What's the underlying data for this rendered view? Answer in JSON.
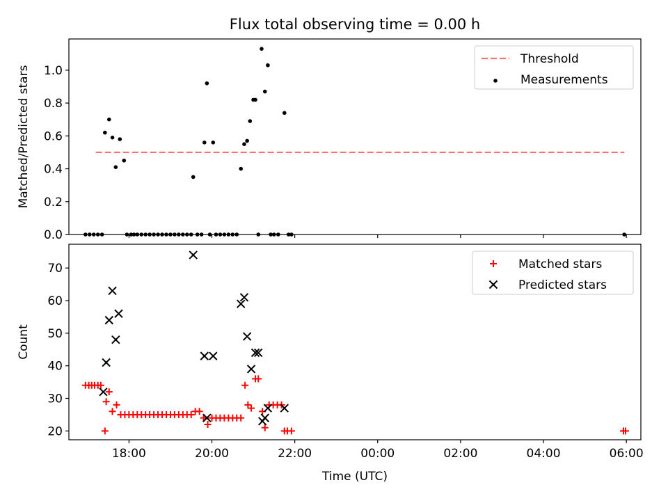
{
  "chart_data": [
    {
      "type": "scatter",
      "title": "Flux total observing time = 0.00 h",
      "xlabel": "",
      "ylabel": "Matched/Predicted stars",
      "xlim": [
        16.55,
        30.35
      ],
      "ylim": [
        0.0,
        1.19
      ],
      "yticks": [
        0.0,
        0.2,
        0.4,
        0.6,
        0.8,
        1.0
      ],
      "ytick_labels": [
        "0.0",
        "0.2",
        "0.4",
        "0.6",
        "0.8",
        "1.0"
      ],
      "xticks": [
        18,
        20,
        22,
        24,
        26,
        28,
        30
      ],
      "legend": {
        "position": "top-right",
        "entries": [
          "Threshold",
          "Measurements"
        ]
      },
      "threshold": {
        "name": "Threshold",
        "value": 0.5,
        "x": [
          17.2,
          29.95
        ],
        "color": "#ff7070"
      },
      "series": [
        {
          "name": "Measurements",
          "color": "#000000",
          "x": [
            16.95,
            17.05,
            17.15,
            17.25,
            17.35,
            17.42,
            17.52,
            17.6,
            17.68,
            17.78,
            17.88,
            17.95,
            18.05,
            18.12,
            18.2,
            18.3,
            18.4,
            18.5,
            18.6,
            18.7,
            18.8,
            18.9,
            19.0,
            19.1,
            19.2,
            19.3,
            19.4,
            19.5,
            19.55,
            19.65,
            19.75,
            19.82,
            19.88,
            19.95,
            20.03,
            20.1,
            20.2,
            20.3,
            20.4,
            20.5,
            20.6,
            20.7,
            20.78,
            20.85,
            20.92,
            21.0,
            21.05,
            21.12,
            21.2,
            21.28,
            21.35,
            21.42,
            21.5,
            21.6,
            21.75,
            21.85,
            21.92,
            29.95
          ],
          "y": [
            0,
            0,
            0,
            0,
            0,
            0.62,
            0.7,
            0.59,
            0.41,
            0.58,
            0.45,
            0,
            0,
            0,
            0,
            0,
            0,
            0,
            0,
            0,
            0,
            0,
            0,
            0,
            0,
            0,
            0,
            0,
            0.35,
            0,
            0,
            0.56,
            0.92,
            0,
            0.56,
            0,
            0,
            0,
            0,
            0,
            0,
            0.4,
            0.55,
            0.57,
            0.69,
            0.82,
            0.82,
            0,
            1.13,
            0.87,
            1.03,
            0,
            0,
            0,
            0.74,
            0,
            0,
            0
          ]
        }
      ]
    },
    {
      "type": "scatter",
      "title": "",
      "xlabel": "Time (UTC)",
      "ylabel": "Count",
      "xlim": [
        16.55,
        30.35
      ],
      "ylim": [
        17.3,
        77.3
      ],
      "yticks": [
        20,
        30,
        40,
        50,
        60,
        70
      ],
      "ytick_labels": [
        "20",
        "30",
        "40",
        "50",
        "60",
        "70"
      ],
      "xticks": [
        18,
        20,
        22,
        24,
        26,
        28,
        30
      ],
      "xtick_labels": [
        "18:00",
        "20:00",
        "22:00",
        "00:00",
        "02:00",
        "04:00",
        "06:00"
      ],
      "legend": {
        "position": "top-right",
        "entries": [
          "Matched stars",
          "Predicted stars"
        ]
      },
      "series": [
        {
          "name": "Matched stars",
          "marker": "+",
          "color": "#ff0000",
          "x": [
            16.95,
            17.03,
            17.1,
            17.17,
            17.25,
            17.32,
            17.42,
            17.45,
            17.52,
            17.6,
            17.7,
            17.8,
            17.9,
            18.0,
            18.1,
            18.2,
            18.3,
            18.4,
            18.5,
            18.6,
            18.7,
            18.8,
            18.9,
            19.0,
            19.1,
            19.2,
            19.3,
            19.4,
            19.5,
            19.6,
            19.7,
            19.8,
            19.9,
            20.0,
            20.1,
            20.2,
            20.3,
            20.4,
            20.5,
            20.6,
            20.7,
            20.8,
            20.87,
            20.95,
            21.05,
            21.12,
            21.22,
            21.28,
            21.38,
            21.48,
            21.58,
            21.68,
            21.75,
            21.82,
            21.92,
            29.93,
            29.98
          ],
          "y": [
            34,
            34,
            34,
            34,
            34,
            34,
            20,
            29,
            32,
            26,
            28,
            25,
            25,
            25,
            25,
            25,
            25,
            25,
            25,
            25,
            25,
            25,
            25,
            25,
            25,
            25,
            25,
            25,
            25,
            26,
            26,
            24,
            22,
            24,
            24,
            24,
            24,
            24,
            24,
            24,
            24,
            34,
            28,
            27,
            36,
            36,
            26,
            21,
            28,
            28,
            28,
            28,
            20,
            20,
            20,
            20,
            20
          ]
        },
        {
          "name": "Predicted stars",
          "marker": "x",
          "color": "#000000",
          "x": [
            17.38,
            17.45,
            17.52,
            17.6,
            17.68,
            17.75,
            19.55,
            19.82,
            19.88,
            20.03,
            20.7,
            20.78,
            20.85,
            20.95,
            21.05,
            21.12,
            21.22,
            21.28,
            21.35,
            21.75
          ],
          "y": [
            32,
            41,
            54,
            63,
            48,
            56,
            74,
            43,
            24,
            43,
            59,
            61,
            49,
            39,
            44,
            44,
            23,
            24,
            27,
            27
          ]
        }
      ]
    }
  ]
}
